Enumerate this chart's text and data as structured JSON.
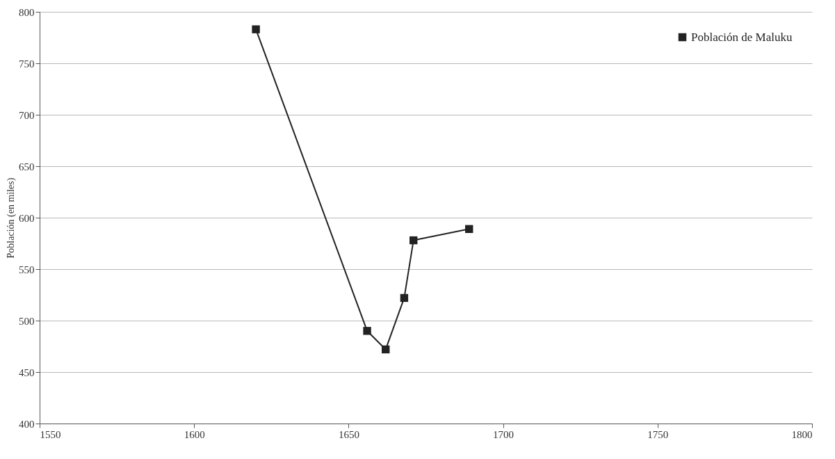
{
  "chart_data": {
    "type": "line",
    "ylabel": "Población (en miles)",
    "x": [
      1620,
      1656,
      1662,
      1668,
      1671,
      1689
    ],
    "series": [
      {
        "name": "Población de Maluku",
        "color": "#222222",
        "values": [
          783,
          490,
          472,
          522,
          578,
          589
        ]
      }
    ],
    "xlim": [
      1550,
      1800
    ],
    "xticks": [
      1550,
      1600,
      1650,
      1700,
      1750,
      1800
    ],
    "ylim": [
      400,
      800
    ],
    "yticks": [
      400,
      450,
      500,
      550,
      600,
      650,
      700,
      750,
      800
    ],
    "grid": "y",
    "legend": "top right",
    "marker": "square",
    "line_style": "solid"
  }
}
